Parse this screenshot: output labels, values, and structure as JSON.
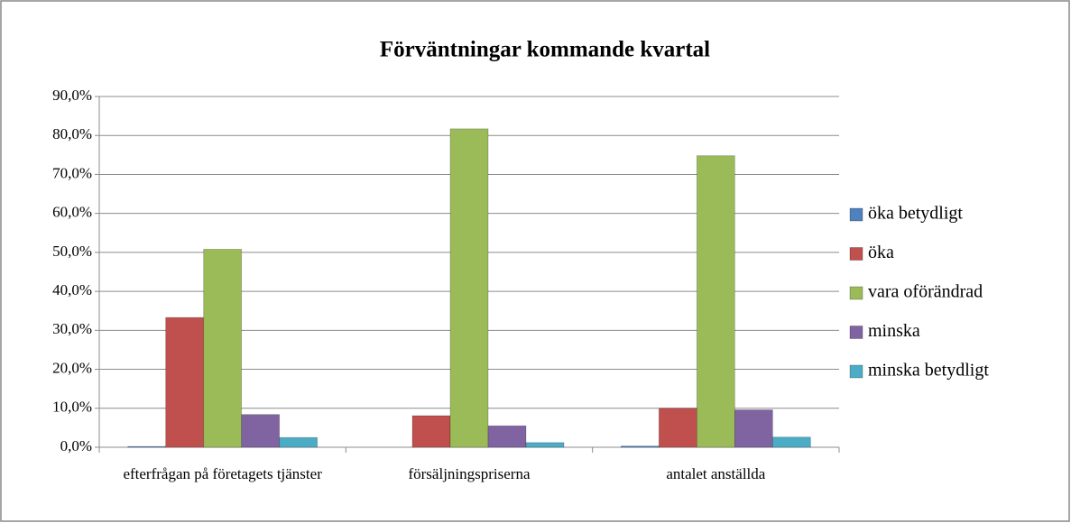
{
  "chart_data": {
    "type": "bar",
    "title": "Förväntningar kommande kvartal",
    "categories": [
      "efterfrågan på företagets tjänster",
      "försäljningspriserna",
      "antalet anställda"
    ],
    "series": [
      {
        "name": "öka betydligt",
        "color": "#4f81bd",
        "values": [
          0.2,
          0,
          0.3
        ]
      },
      {
        "name": "öka",
        "color": "#c0504d",
        "values": [
          33.3,
          8.1,
          10
        ]
      },
      {
        "name": "vara oförändrad",
        "color": "#9bbb59",
        "values": [
          50.8,
          81.7,
          74.8
        ]
      },
      {
        "name": "minska",
        "color": "#8064a2",
        "values": [
          8.4,
          5.5,
          9.6
        ]
      },
      {
        "name": "minska betydligt",
        "color": "#4bacc6",
        "values": [
          2.5,
          1.2,
          2.6
        ]
      }
    ],
    "ylim": [
      0,
      90
    ],
    "yticks": [
      {
        "value": 0,
        "label": "0,0%"
      },
      {
        "value": 10,
        "label": "10,0%"
      },
      {
        "value": 20,
        "label": "20,0%"
      },
      {
        "value": 30,
        "label": "30,0%"
      },
      {
        "value": 40,
        "label": "40,0%"
      },
      {
        "value": 50,
        "label": "50,0%"
      },
      {
        "value": 60,
        "label": "60,0%"
      },
      {
        "value": 70,
        "label": "70,0%"
      },
      {
        "value": 80,
        "label": "80,0%"
      },
      {
        "value": 90,
        "label": "90,0%"
      }
    ],
    "grid": true,
    "legend": "right"
  }
}
